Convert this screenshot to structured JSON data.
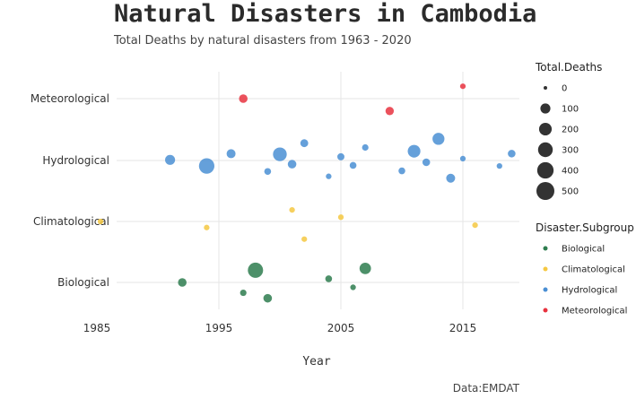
{
  "title": "Natural Disasters in Cambodia",
  "subtitle": "Total Deaths by natural disasters from 1963 - 2020",
  "caption": "Data:EMDAT",
  "chart_data": {
    "type": "scatter",
    "xlabel": "Year",
    "xlim": [
      1985,
      2019.5
    ],
    "x_ticks": [
      1985,
      1995,
      2005,
      2015
    ],
    "categories": [
      "Biological",
      "Climatological",
      "Hydrological",
      "Meteorological"
    ],
    "grid": true,
    "size_legend_title": "Total.Deaths",
    "size_legend_values": [
      0,
      100,
      200,
      300,
      400,
      500
    ],
    "color_legend_title": "Disaster.Subgroup",
    "legend_position": "right",
    "colors": {
      "Biological": "#2e7d4f",
      "Climatological": "#f5c842",
      "Hydrological": "#4a8fd4",
      "Meteorological": "#e8323f"
    },
    "series": [
      {
        "name": "Biological",
        "points": [
          {
            "x": 1992,
            "y": 0,
            "deaths": 60
          },
          {
            "x": 1997,
            "y": -0.17,
            "deaths": 20
          },
          {
            "x": 1998,
            "y": 0.2,
            "deaths": 330
          },
          {
            "x": 1999,
            "y": -0.26,
            "deaths": 60
          },
          {
            "x": 2004,
            "y": 0.06,
            "deaths": 25
          },
          {
            "x": 2006,
            "y": -0.08,
            "deaths": 10
          },
          {
            "x": 2007,
            "y": 0.23,
            "deaths": 150
          }
        ]
      },
      {
        "name": "Climatological",
        "points": [
          {
            "x": 1985.3,
            "y": 1.0,
            "deaths": 10
          },
          {
            "x": 1994,
            "y": 0.9,
            "deaths": 10
          },
          {
            "x": 2001,
            "y": 1.19,
            "deaths": 10
          },
          {
            "x": 2002,
            "y": 0.71,
            "deaths": 10
          },
          {
            "x": 2005,
            "y": 1.07,
            "deaths": 10
          },
          {
            "x": 2016,
            "y": 0.94,
            "deaths": 10
          }
        ]
      },
      {
        "name": "Hydrological",
        "points": [
          {
            "x": 1991,
            "y": 2.01,
            "deaths": 100
          },
          {
            "x": 1994,
            "y": 1.91,
            "deaths": 340
          },
          {
            "x": 1996,
            "y": 2.11,
            "deaths": 70
          },
          {
            "x": 1999,
            "y": 1.82,
            "deaths": 25
          },
          {
            "x": 2000,
            "y": 2.1,
            "deaths": 250
          },
          {
            "x": 2001,
            "y": 1.94,
            "deaths": 60
          },
          {
            "x": 2002,
            "y": 2.28,
            "deaths": 45
          },
          {
            "x": 2004,
            "y": 1.74,
            "deaths": 10
          },
          {
            "x": 2005,
            "y": 2.06,
            "deaths": 30
          },
          {
            "x": 2006,
            "y": 1.92,
            "deaths": 25
          },
          {
            "x": 2007,
            "y": 2.21,
            "deaths": 20
          },
          {
            "x": 2010,
            "y": 1.83,
            "deaths": 25
          },
          {
            "x": 2011,
            "y": 2.15,
            "deaths": 200
          },
          {
            "x": 2012,
            "y": 1.97,
            "deaths": 40
          },
          {
            "x": 2013,
            "y": 2.35,
            "deaths": 170
          },
          {
            "x": 2014,
            "y": 1.71,
            "deaths": 70
          },
          {
            "x": 2015,
            "y": 2.03,
            "deaths": 10
          },
          {
            "x": 2018,
            "y": 1.91,
            "deaths": 10
          },
          {
            "x": 2019,
            "y": 2.11,
            "deaths": 40
          }
        ]
      },
      {
        "name": "Meteorological",
        "points": [
          {
            "x": 1997,
            "y": 3.0,
            "deaths": 60
          },
          {
            "x": 2009,
            "y": 2.8,
            "deaths": 55
          },
          {
            "x": 2015,
            "y": 3.2,
            "deaths": 10
          }
        ]
      }
    ]
  }
}
